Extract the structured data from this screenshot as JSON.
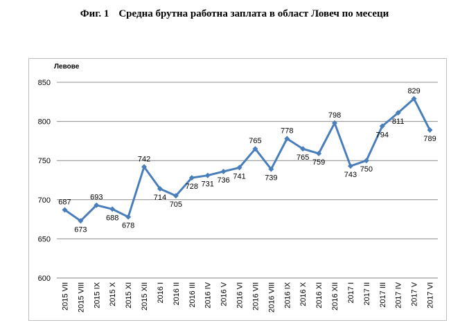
{
  "figure": {
    "number": "Фиг. 1",
    "title": "Средна брутна работна заплата в област Ловеч по месеци"
  },
  "chart_data": {
    "type": "line",
    "ylabel": "Левове",
    "xlabel": "",
    "ylim": [
      600,
      850
    ],
    "yticks": [
      600,
      650,
      700,
      750,
      800,
      850
    ],
    "grid": true,
    "line_color": "#4a7ebb",
    "categories": [
      "2015 VII",
      "2015 VIII",
      "2015 IX",
      "2015 X",
      "2015 XI",
      "2015 XII",
      "2016 I",
      "2016 II",
      "2016 III",
      "2016 IV",
      "2016 V",
      "2016 VI",
      "2016 VII",
      "2016 VIII",
      "2016 IX",
      "2016 X",
      "2016 XI",
      "2016 XII",
      "2017 I",
      "2017 II",
      "2017 III",
      "2017 IV",
      "2017 V",
      "2017 VI"
    ],
    "values": [
      687,
      673,
      693,
      688,
      678,
      742,
      714,
      705,
      728,
      731,
      736,
      741,
      765,
      739,
      778,
      765,
      759,
      798,
      743,
      750,
      794,
      811,
      829,
      789
    ],
    "labels": [
      "687",
      "673",
      "693",
      "688",
      "678",
      "742",
      "714",
      "705",
      "728",
      "731",
      "736",
      "741",
      "765",
      "739",
      "778",
      "765",
      "759",
      "798",
      "743",
      "750",
      "794",
      "811",
      "829",
      "789"
    ]
  }
}
